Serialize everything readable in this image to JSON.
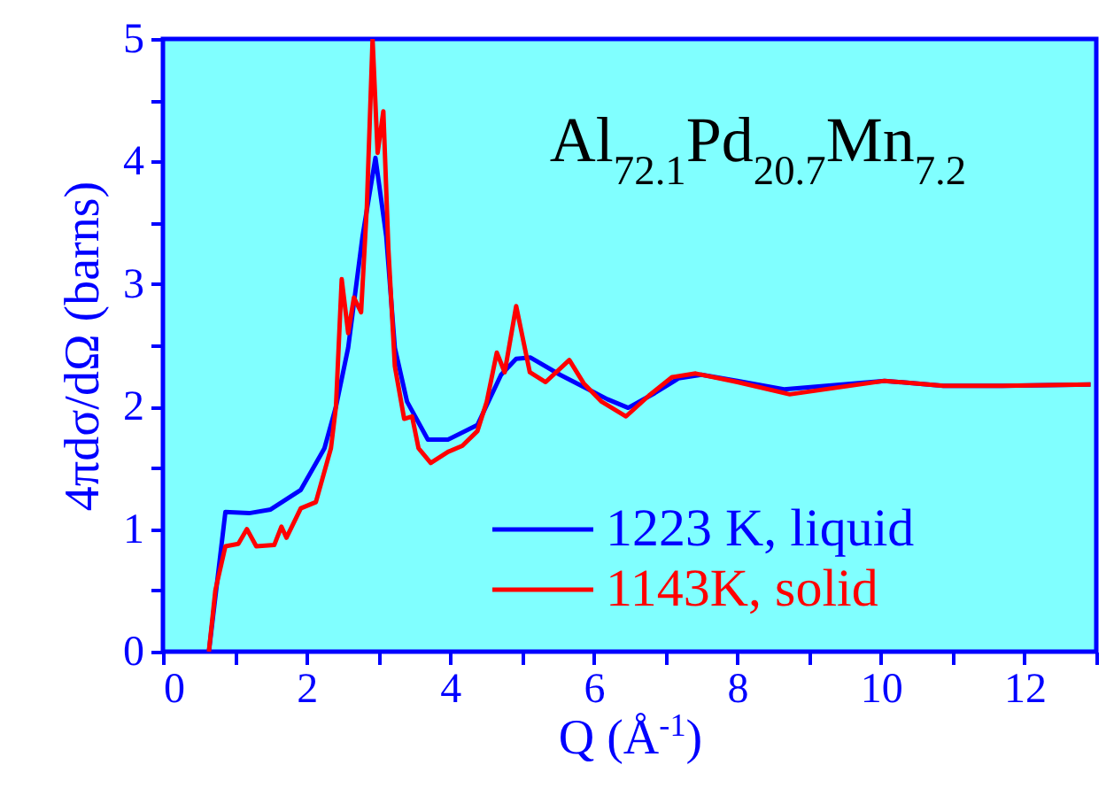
{
  "chart_data": {
    "type": "line",
    "annotations": [
      "Al$_{72.1}$Pd$_{20.7}$Mn$_{7.2}$"
    ],
    "xlabel": "Q (Å$^{-1}$)",
    "ylabel": "4πdσ/dΩ (barns)",
    "xlim": [
      0,
      13
    ],
    "ylim": [
      0,
      5
    ],
    "xticks": [
      0,
      {
        "value": 1,
        "label": null
      },
      2,
      {
        "value": 3,
        "label": null
      },
      4,
      {
        "value": 5,
        "label": null
      },
      6,
      {
        "value": 7,
        "label": null
      },
      8,
      {
        "value": 9,
        "label": null
      },
      10,
      {
        "value": 11,
        "label": null
      },
      12,
      {
        "value": 13,
        "label": null
      }
    ],
    "yticks": [
      0,
      {
        "value": 0.5,
        "label": null
      },
      1,
      {
        "value": 1.5,
        "label": null
      },
      2,
      {
        "value": 2.5,
        "label": null
      },
      3,
      {
        "value": 3.5,
        "label": null
      },
      4,
      {
        "value": 4.5,
        "label": null
      },
      5
    ],
    "legend": "bottom right",
    "grid": false,
    "marker": "none",
    "line_style": "solid",
    "series": [
      {
        "name": "1223 K, liquid",
        "color": "#0000ff",
        "x": [
          0.64,
          0.87,
          1.2,
          1.5,
          1.92,
          2.25,
          2.41,
          2.58,
          2.78,
          2.96,
          3.11,
          3.23,
          3.4,
          3.69,
          3.97,
          4.38,
          4.71,
          4.92,
          5.12,
          5.53,
          5.86,
          6.19,
          6.48,
          6.85,
          7.18,
          7.5,
          8.0,
          8.65,
          10.05,
          10.87,
          11.69,
          12.92
        ],
        "values": [
          0,
          1.14,
          1.13,
          1.16,
          1.32,
          1.66,
          2.0,
          2.48,
          3.39,
          4.03,
          3.39,
          2.48,
          2.04,
          1.73,
          1.73,
          1.85,
          2.26,
          2.39,
          2.4,
          2.26,
          2.16,
          2.06,
          1.99,
          2.11,
          2.23,
          2.26,
          2.21,
          2.14,
          2.21,
          2.17,
          2.17,
          2.18
        ]
      },
      {
        "name": "1143K, solid",
        "color": "#ff0000",
        "x": [
          0.64,
          0.73,
          0.87,
          1.05,
          1.17,
          1.3,
          1.55,
          1.65,
          1.72,
          1.92,
          2.13,
          2.34,
          2.41,
          2.49,
          2.58,
          2.66,
          2.76,
          2.84,
          2.92,
          2.99,
          3.07,
          3.14,
          3.23,
          3.36,
          3.47,
          3.56,
          3.73,
          3.97,
          4.17,
          4.38,
          4.51,
          4.65,
          4.76,
          4.92,
          5.11,
          5.33,
          5.66,
          5.86,
          6.11,
          6.45,
          6.77,
          7.09,
          7.42,
          8.0,
          8.73,
          10.05,
          10.87,
          11.69,
          12.92
        ],
        "values": [
          0,
          0.5,
          0.86,
          0.88,
          1.0,
          0.86,
          0.87,
          1.02,
          0.93,
          1.17,
          1.22,
          1.66,
          2.0,
          3.04,
          2.6,
          2.89,
          2.77,
          3.63,
          5.0,
          4.07,
          4.41,
          3.29,
          2.33,
          1.9,
          1.92,
          1.66,
          1.54,
          1.63,
          1.68,
          1.8,
          2.04,
          2.44,
          2.28,
          2.82,
          2.28,
          2.2,
          2.38,
          2.19,
          2.04,
          1.92,
          2.09,
          2.24,
          2.27,
          2.2,
          2.1,
          2.21,
          2.17,
          2.17,
          2.18
        ]
      }
    ]
  }
}
